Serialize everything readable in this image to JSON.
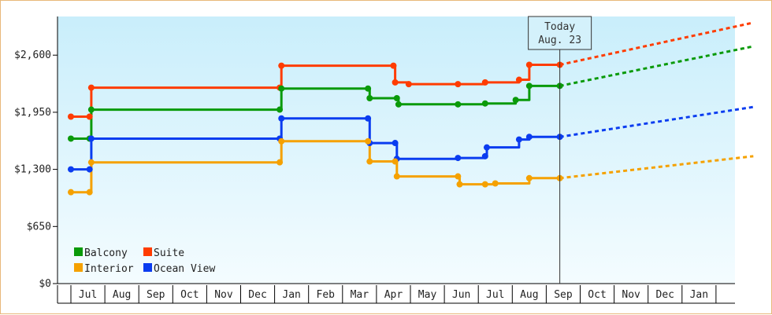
{
  "chart_data": {
    "type": "line",
    "y_axis": {
      "ticks": [
        {
          "value": 0,
          "label": "$0"
        },
        {
          "value": 650,
          "label": "$650"
        },
        {
          "value": 1300,
          "label": "$1,300"
        },
        {
          "value": 1950,
          "label": "$1,950"
        },
        {
          "value": 2600,
          "label": "$2,600"
        }
      ],
      "ylim": [
        0,
        3040
      ]
    },
    "x_axis": {
      "months": [
        "Jul",
        "Aug",
        "Sep",
        "Oct",
        "Nov",
        "Dec",
        "Jan",
        "Feb",
        "Mar",
        "Apr",
        "May",
        "Jun",
        "Jul",
        "Aug",
        "Sep",
        "Oct",
        "Nov",
        "Dec",
        "Jan"
      ],
      "xlim": [
        0,
        20.1
      ]
    },
    "today_marker": {
      "x": 14.4,
      "line1": "Today",
      "line2": "Aug. 23"
    },
    "legend": {
      "placement": "bottom-left",
      "entries": [
        {
          "name": "Balcony",
          "color": "#0a9a0a"
        },
        {
          "name": "Suite",
          "color": "#ff3c00"
        },
        {
          "name": "Interior",
          "color": "#f5a100"
        },
        {
          "name": "Ocean View",
          "color": "#0a3cf0"
        }
      ]
    },
    "series": [
      {
        "name": "Suite",
        "color": "#ff3c00",
        "x": [
          0,
          0.55,
          0.6,
          6.15,
          6.2,
          9.5,
          9.55,
          9.95,
          11.4,
          12.2,
          13.2,
          13.5
        ],
        "y": [
          1900,
          1900,
          2230,
          2230,
          2480,
          2480,
          2290,
          2270,
          2270,
          2290,
          2320,
          2490
        ],
        "forecast": {
          "x": [
            14.4,
            20.1
          ],
          "y": [
            2490,
            2970
          ]
        }
      },
      {
        "name": "Balcony",
        "color": "#0a9a0a",
        "x": [
          0,
          0.55,
          0.6,
          6.15,
          6.2,
          8.75,
          8.8,
          9.6,
          9.65,
          11.4,
          12.2,
          13.1,
          13.5
        ],
        "y": [
          1650,
          1650,
          1980,
          1980,
          2220,
          2220,
          2110,
          2110,
          2040,
          2040,
          2050,
          2090,
          2250
        ],
        "forecast": {
          "x": [
            14.4,
            20.1
          ],
          "y": [
            2250,
            2700
          ]
        }
      },
      {
        "name": "Ocean View",
        "color": "#0a3cf0",
        "x": [
          0,
          0.55,
          0.6,
          6.15,
          6.2,
          8.75,
          8.8,
          9.55,
          9.6,
          11.4,
          12.2,
          12.25,
          13.2,
          13.5
        ],
        "y": [
          1300,
          1300,
          1650,
          1650,
          1880,
          1880,
          1600,
          1600,
          1420,
          1430,
          1450,
          1550,
          1640,
          1670
        ],
        "forecast": {
          "x": [
            14.4,
            20.1
          ],
          "y": [
            1670,
            2010
          ]
        }
      },
      {
        "name": "Interior",
        "color": "#f5a100",
        "x": [
          0,
          0.55,
          0.6,
          6.15,
          6.2,
          8.75,
          8.8,
          9.55,
          9.6,
          11.4,
          11.45,
          12.2,
          12.5,
          13.5
        ],
        "y": [
          1040,
          1040,
          1380,
          1380,
          1620,
          1620,
          1390,
          1390,
          1220,
          1220,
          1130,
          1130,
          1140,
          1200
        ],
        "forecast": {
          "x": [
            14.4,
            20.1
          ],
          "y": [
            1200,
            1450
          ]
        }
      }
    ]
  }
}
